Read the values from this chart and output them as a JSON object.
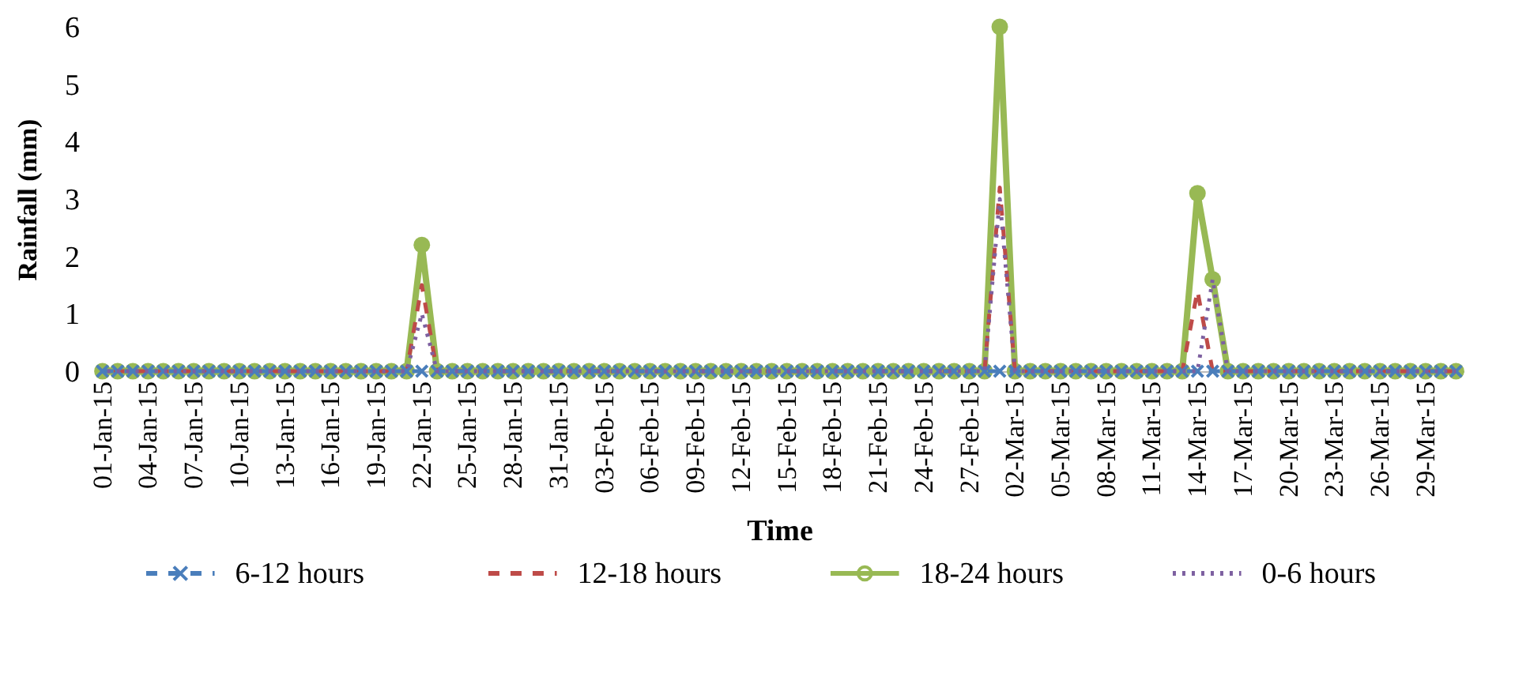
{
  "chart_data": {
    "type": "line",
    "xlabel": "Time",
    "ylabel": "Rainfall (mm)",
    "ylim": [
      0,
      6
    ],
    "yticks": [
      0,
      1,
      2,
      3,
      4,
      5,
      6
    ],
    "grid": false,
    "legend": "bottom",
    "categories": [
      "01-Jan-15",
      null,
      null,
      "04-Jan-15",
      null,
      null,
      "07-Jan-15",
      null,
      null,
      "10-Jan-15",
      null,
      null,
      "13-Jan-15",
      null,
      null,
      "16-Jan-15",
      null,
      null,
      "19-Jan-15",
      null,
      null,
      "22-Jan-15",
      null,
      null,
      "25-Jan-15",
      null,
      null,
      "28-Jan-15",
      null,
      null,
      "31-Jan-15",
      null,
      null,
      "03-Feb-15",
      null,
      null,
      "06-Feb-15",
      null,
      null,
      "09-Feb-15",
      null,
      null,
      "12-Feb-15",
      null,
      null,
      "15-Feb-15",
      null,
      null,
      "18-Feb-15",
      null,
      null,
      "21-Feb-15",
      null,
      null,
      "24-Feb-15",
      null,
      null,
      "27-Feb-15",
      null,
      null,
      "02-Mar-15",
      null,
      null,
      "05-Mar-15",
      null,
      null,
      "08-Mar-15",
      null,
      null,
      "11-Mar-15",
      null,
      null,
      "14-Mar-15",
      null,
      null,
      "17-Mar-15",
      null,
      null,
      "20-Mar-15",
      null,
      null,
      "23-Mar-15",
      null,
      null,
      "26-Mar-15",
      null,
      null,
      "29-Mar-15",
      null,
      null
    ],
    "series": [
      {
        "name": "6-12 hours",
        "color": "#4a7ebb",
        "marker": "cross",
        "line_style": "dashed",
        "values": [
          0,
          0,
          0,
          0,
          0,
          0,
          0,
          0,
          0,
          0,
          0,
          0,
          0,
          0,
          0,
          0,
          0,
          0,
          0,
          0,
          0,
          0,
          0,
          0,
          0,
          0,
          0,
          0,
          0,
          0,
          0,
          0,
          0,
          0,
          0,
          0,
          0,
          0,
          0,
          0,
          0,
          0,
          0,
          0,
          0,
          0,
          0,
          0,
          0,
          0,
          0,
          0,
          0,
          0,
          0,
          0,
          0,
          0,
          0,
          0,
          0,
          0,
          0,
          0,
          0,
          0,
          0,
          0,
          0,
          0,
          0,
          0,
          0,
          0,
          0,
          0,
          0,
          0,
          0,
          0,
          0,
          0,
          0,
          0,
          0,
          0,
          0,
          0,
          0,
          0
        ]
      },
      {
        "name": "12-18 hours",
        "color": "#be4b48",
        "marker": "none",
        "line_style": "dashed",
        "values": [
          0,
          0,
          0,
          0,
          0,
          0,
          0,
          0,
          0,
          0,
          0,
          0,
          0,
          0,
          0,
          0,
          0,
          0,
          0,
          0,
          0,
          1.5,
          0,
          0,
          0,
          0,
          0,
          0,
          0,
          0,
          0,
          0,
          0,
          0,
          0,
          0,
          0,
          0,
          0,
          0,
          0,
          0,
          0,
          0,
          0,
          0,
          0,
          0,
          0,
          0,
          0,
          0,
          0,
          0,
          0,
          0,
          0,
          0,
          0,
          3.2,
          0,
          0,
          0,
          0,
          0,
          0,
          0,
          0,
          0,
          0,
          0,
          0,
          1.4,
          0,
          0,
          0,
          0,
          0,
          0,
          0,
          0,
          0,
          0,
          0,
          0,
          0,
          0,
          0,
          0,
          0
        ]
      },
      {
        "name": "18-24 hours",
        "color": "#98b954",
        "marker": "circle",
        "line_style": "solid",
        "values": [
          0,
          0,
          0,
          0,
          0,
          0,
          0,
          0,
          0,
          0,
          0,
          0,
          0,
          0,
          0,
          0,
          0,
          0,
          0,
          0,
          0,
          2.2,
          0,
          0,
          0,
          0,
          0,
          0,
          0,
          0,
          0,
          0,
          0,
          0,
          0,
          0,
          0,
          0,
          0,
          0,
          0,
          0,
          0,
          0,
          0,
          0,
          0,
          0,
          0,
          0,
          0,
          0,
          0,
          0,
          0,
          0,
          0,
          0,
          0,
          6,
          0,
          0,
          0,
          0,
          0,
          0,
          0,
          0,
          0,
          0,
          0,
          0,
          3.1,
          1.6,
          0,
          0,
          0,
          0,
          0,
          0,
          0,
          0,
          0,
          0,
          0,
          0,
          0,
          0,
          0,
          0
        ]
      },
      {
        "name": "0-6 hours",
        "color": "#7d60a0",
        "marker": "none",
        "line_style": "dotted",
        "values": [
          0,
          0,
          0,
          0,
          0,
          0,
          0,
          0,
          0,
          0,
          0,
          0,
          0,
          0,
          0,
          0,
          0,
          0,
          0,
          0,
          0,
          1.0,
          0,
          0,
          0,
          0,
          0,
          0,
          0,
          0,
          0,
          0,
          0,
          0,
          0,
          0,
          0,
          0,
          0,
          0,
          0,
          0,
          0,
          0,
          0,
          0,
          0,
          0,
          0,
          0,
          0,
          0,
          0,
          0,
          0,
          0,
          0,
          0,
          0,
          3.0,
          0,
          0,
          0,
          0,
          0,
          0,
          0,
          0,
          0,
          0,
          0,
          0,
          0,
          1.6,
          0,
          0,
          0,
          0,
          0,
          0,
          0,
          0,
          0,
          0,
          0,
          0,
          0,
          0,
          0,
          0
        ]
      }
    ]
  }
}
